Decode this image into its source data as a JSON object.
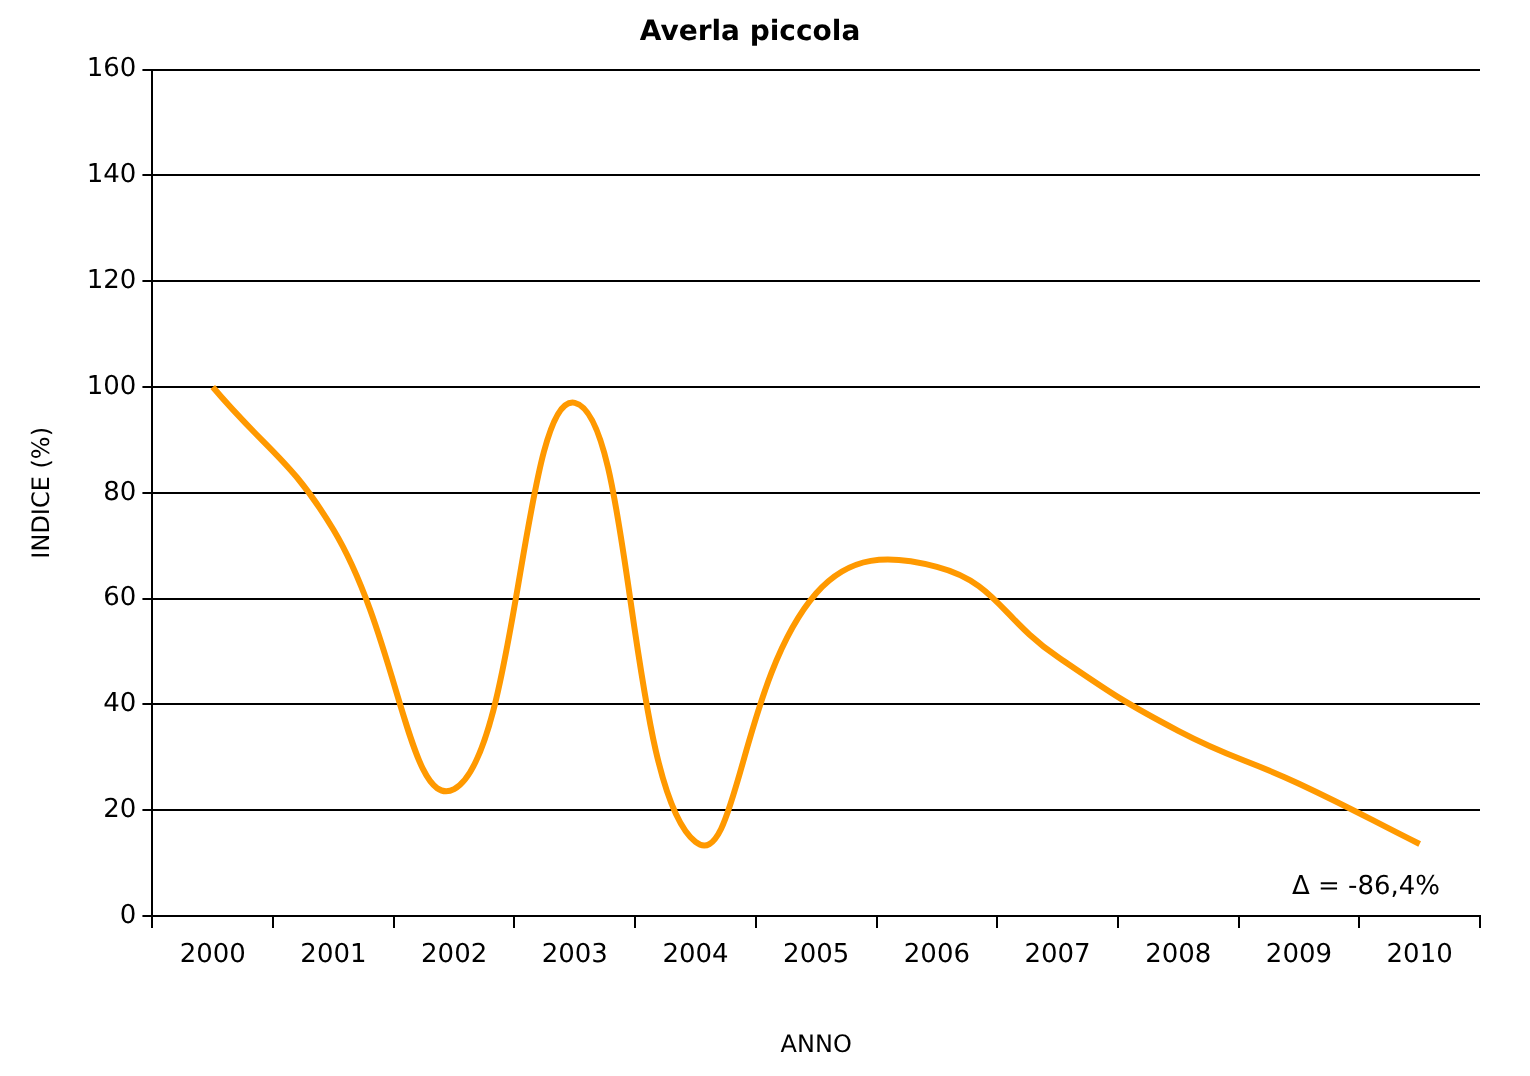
{
  "chart_data": {
    "type": "line",
    "title": "Averla piccola",
    "xlabel": "ANNO",
    "ylabel": "INDICE (%)",
    "categories": [
      "2000",
      "2001",
      "2002",
      "2003",
      "2004",
      "2005",
      "2006",
      "2007",
      "2008",
      "2009",
      "2010"
    ],
    "series": [
      {
        "color": "#ff9900",
        "values": [
          100,
          73,
          24,
          97,
          14,
          61,
          66,
          49,
          35,
          25,
          13.6
        ]
      }
    ],
    "ylim": [
      0,
      160
    ],
    "yticks": [
      0,
      20,
      40,
      60,
      80,
      100,
      120,
      140,
      160
    ],
    "grid": "y",
    "legend": false,
    "marker": "none",
    "line_style": "solid",
    "annotations": [
      "Δ = -86,4%"
    ]
  }
}
